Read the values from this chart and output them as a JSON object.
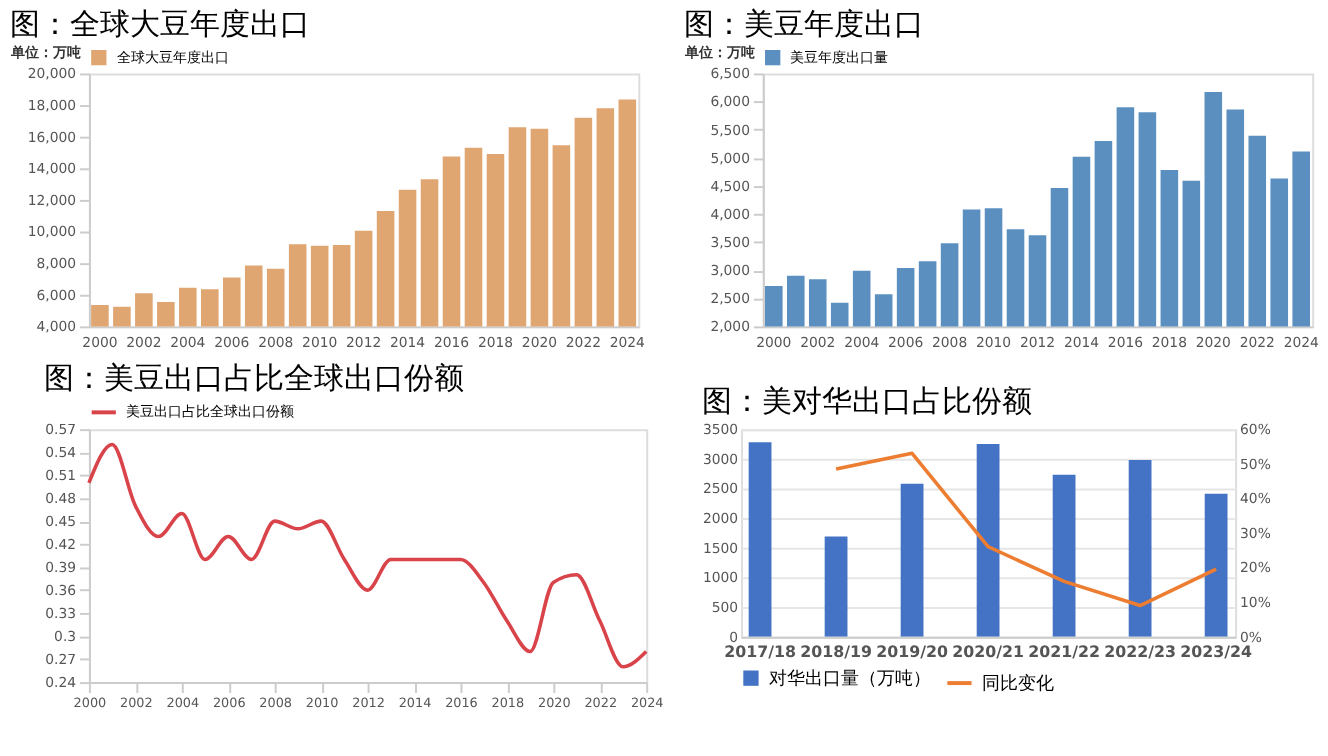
{
  "chart_data": [
    {
      "type": "bar",
      "title": "图：全球大豆年度出口",
      "ylabel": "单位：万吨",
      "legend": "top",
      "categories": [
        "2000",
        null,
        "2002",
        null,
        "2004",
        null,
        "2006",
        null,
        "2008",
        null,
        "2010",
        null,
        "2012",
        null,
        "2014",
        null,
        "2016",
        null,
        "2018",
        null,
        "2020",
        null,
        "2022",
        null,
        "2024"
      ],
      "series": [
        {
          "name": "全球大豆年度出口",
          "color": "#dfa672",
          "values": [
            5350,
            5250,
            6100,
            5550,
            6450,
            6350,
            7100,
            7850,
            7650,
            9200,
            9100,
            9150,
            10050,
            11300,
            12650,
            13300,
            14750,
            15300,
            14900,
            16600,
            16500,
            15450,
            17200,
            17800,
            18350
          ]
        }
      ],
      "ylim": [
        4000,
        20000
      ],
      "yticks": [
        {
          "value": 4000,
          "label": "4,000"
        },
        {
          "value": 6000,
          "label": "6,000"
        },
        {
          "value": 8000,
          "label": "8,000"
        },
        {
          "value": 10000,
          "label": "10,000"
        },
        {
          "value": 12000,
          "label": "12,000"
        },
        {
          "value": 14000,
          "label": "14,000"
        },
        {
          "value": 16000,
          "label": "16,000"
        },
        {
          "value": 18000,
          "label": "18,000"
        },
        {
          "value": 20000,
          "label": "20,000"
        }
      ]
    },
    {
      "type": "bar",
      "title": "图：美豆年度出口",
      "ylabel": "单位：万吨",
      "legend": "top",
      "categories": [
        "2000",
        null,
        "2002",
        null,
        "2004",
        null,
        "2006",
        null,
        "2008",
        null,
        "2010",
        null,
        "2012",
        null,
        "2014",
        null,
        "2016",
        null,
        "2018",
        null,
        "2020",
        null,
        "2022",
        null,
        "2024"
      ],
      "series": [
        {
          "name": "美豆年度出口量",
          "color": "#5b8fc0",
          "values": [
            2720,
            2900,
            2840,
            2420,
            2990,
            2570,
            3040,
            3160,
            3480,
            4080,
            4100,
            3730,
            3620,
            4460,
            5020,
            5300,
            5900,
            5810,
            4780,
            4590,
            6170,
            5860,
            5390,
            4630,
            5110
          ]
        }
      ],
      "ylim": [
        2000,
        6500
      ],
      "yticks": [
        {
          "value": 2000,
          "label": "2,000"
        },
        {
          "value": 2500,
          "label": "2,500"
        },
        {
          "value": 3000,
          "label": "3,000"
        },
        {
          "value": 3500,
          "label": "3,500"
        },
        {
          "value": 4000,
          "label": "4,000"
        },
        {
          "value": 4500,
          "label": "4,500"
        },
        {
          "value": 5000,
          "label": "5,000"
        },
        {
          "value": 5500,
          "label": "5,500"
        },
        {
          "value": 6000,
          "label": "6,000"
        },
        {
          "value": 6500,
          "label": "6,500"
        }
      ]
    },
    {
      "type": "line",
      "title": "图：美豆出口占比全球出口份额",
      "legend": "top",
      "x": [
        2000,
        2001,
        2002,
        2003,
        2004,
        2005,
        2006,
        2007,
        2008,
        2009,
        2010,
        2011,
        2012,
        2013,
        2014,
        2015,
        2016,
        2017,
        2018,
        2019,
        2020,
        2021,
        2022,
        2023,
        2024
      ],
      "series": [
        {
          "name": "美豆出口占比全球出口份额",
          "color": "#d9434a",
          "values": [
            0.5,
            0.55,
            0.47,
            0.43,
            0.46,
            0.4,
            0.43,
            0.4,
            0.45,
            0.44,
            0.45,
            0.4,
            0.36,
            0.4,
            0.4,
            0.4,
            0.4,
            0.37,
            0.32,
            0.28,
            0.37,
            0.38,
            0.32,
            0.26,
            0.28
          ]
        }
      ],
      "xlim": [
        2000,
        2024
      ],
      "xticks": [
        2000,
        2002,
        2004,
        2006,
        2008,
        2010,
        2012,
        2014,
        2016,
        2018,
        2020,
        2022,
        2024
      ],
      "ylim": [
        0.24,
        0.57
      ],
      "yticks": [
        0.24,
        0.27,
        0.3,
        0.33,
        0.36,
        0.39,
        0.42,
        0.45,
        0.48,
        0.51,
        0.54,
        0.57
      ]
    },
    {
      "type": "bar",
      "title": "图：美对华出口占比份额",
      "legend": "bottom",
      "grid": "y",
      "categories": [
        "2017/18",
        "2018/19",
        "2019/20",
        "2020/21",
        "2021/22",
        "2022/23",
        "2023/24"
      ],
      "series": [
        {
          "name": "对华出口量（万吨）",
          "color": "#4472c4",
          "values": [
            3280,
            1690,
            2580,
            3250,
            2730,
            2980,
            2410
          ]
        },
        {
          "name": "同比变化",
          "type": "line",
          "axis": "y2",
          "color": "#ed7d31",
          "values": [
            null,
            48.5,
            53,
            26,
            16,
            9,
            19.5
          ]
        }
      ],
      "ylim": [
        0,
        3500
      ],
      "yticks": [
        0,
        500,
        1000,
        1500,
        2000,
        2500,
        3000,
        3500
      ],
      "y2lim": [
        0,
        60
      ],
      "y2ticks": [
        {
          "value": 0,
          "label": "0%"
        },
        {
          "value": 10,
          "label": "10%"
        },
        {
          "value": 20,
          "label": "20%"
        },
        {
          "value": 30,
          "label": "30%"
        },
        {
          "value": 40,
          "label": "40%"
        },
        {
          "value": 50,
          "label": "50%"
        },
        {
          "value": 60,
          "label": "60%"
        }
      ]
    }
  ]
}
